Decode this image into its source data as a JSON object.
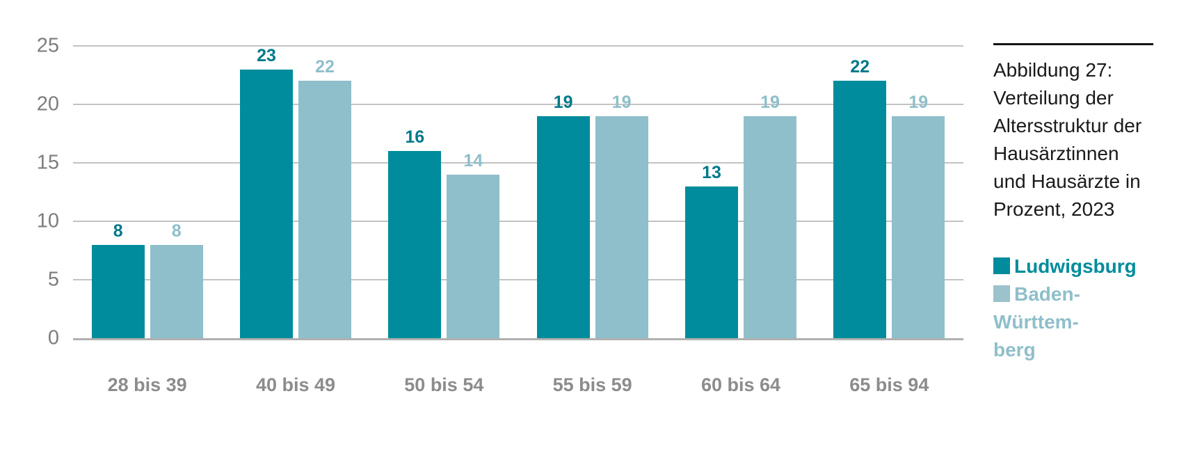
{
  "chart_data": {
    "type": "bar",
    "categories": [
      "28 bis 39",
      "40 bis 49",
      "50 bis 54",
      "55 bis 59",
      "60 bis 64",
      "65 bis 94"
    ],
    "series": [
      {
        "name": "Ludwigsburg",
        "color": "#008c9c",
        "label_color": "#00798a",
        "values": [
          8,
          23,
          16,
          19,
          13,
          22
        ]
      },
      {
        "name": "Baden-Württemberg",
        "color": "#8ebfca",
        "label_color": "#8ebfca",
        "values": [
          8,
          22,
          14,
          19,
          19,
          19
        ]
      }
    ],
    "yticks": [
      0,
      5,
      10,
      15,
      20,
      25
    ],
    "ylim": [
      0,
      25
    ],
    "grid": true,
    "legend_position": "right",
    "title": "Abbildung 27: Verteilung der Altersstruktur der Hausärztinnen und Hausärzte in Prozent, 2023"
  },
  "caption": {
    "lines": [
      "Abbildung 27:",
      "Verteilung der",
      "Altersstruktur der",
      "Hausärztinnen",
      "und Hausärzte in",
      "Prozent, 2023"
    ]
  },
  "legend": {
    "items": [
      {
        "label": "Ludwigsburg"
      },
      {
        "line1": "Baden-Württem-",
        "line2": "berg"
      }
    ]
  }
}
